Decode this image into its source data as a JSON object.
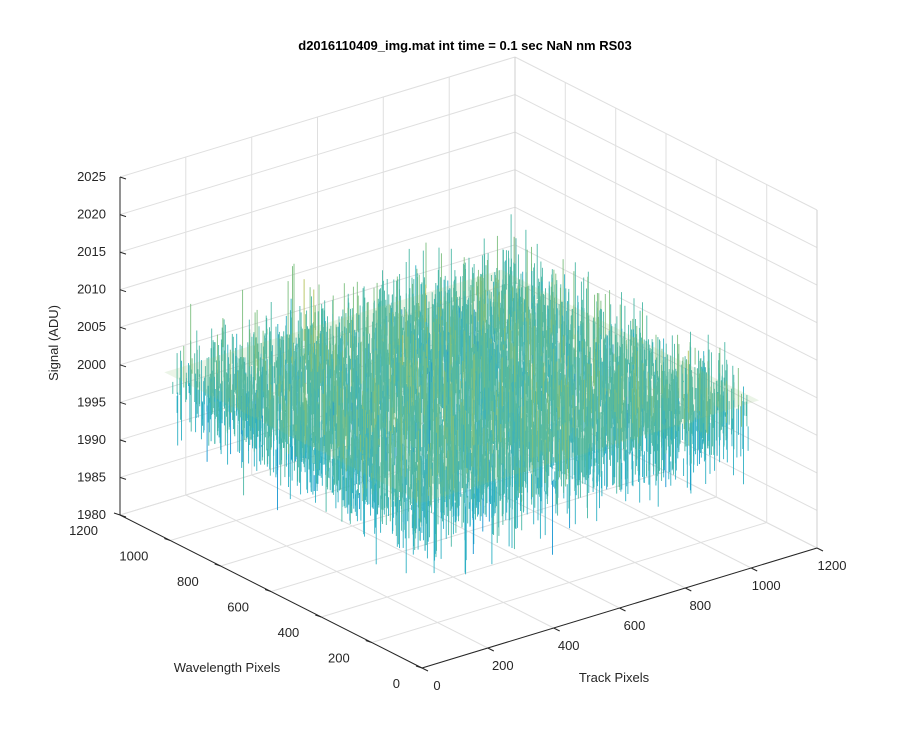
{
  "chart_data": {
    "type": "surface3d",
    "title": "d2016110409_img.mat int time = 0.1 sec  NaN nm RS03",
    "xlabel": "Track Pixels",
    "ylabel": "Wavelength Pixels",
    "zlabel": "Signal (ADU)",
    "xlim": [
      0,
      1200
    ],
    "ylim": [
      0,
      1200
    ],
    "zlim": [
      1980,
      2025
    ],
    "x_ticks": [
      "0",
      "200",
      "400",
      "600",
      "800",
      "1000",
      "1200"
    ],
    "y_ticks": [
      "0",
      "200",
      "400",
      "600",
      "800",
      "1000",
      "1200"
    ],
    "z_ticks": [
      "1980",
      "1985",
      "1990",
      "1995",
      "2000",
      "2005",
      "2010",
      "2015",
      "2020",
      "2025"
    ],
    "grid": true,
    "data_extent": {
      "x": [
        0,
        1024
      ],
      "y": [
        0,
        1024
      ]
    },
    "signal_mean": 2000,
    "signal_range": [
      1984,
      2019
    ],
    "colormap": [
      "#0072bd",
      "#1696d2",
      "#2fb0c4",
      "#4bb8a6",
      "#7cbf7f",
      "#b5c35c",
      "#e8c548"
    ]
  }
}
